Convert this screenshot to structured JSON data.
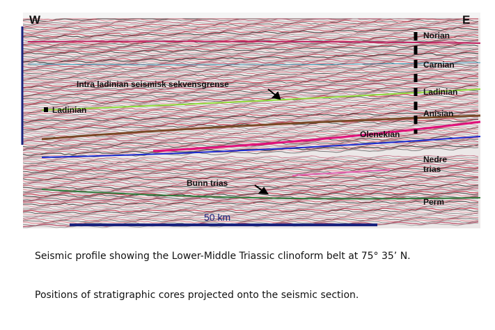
{
  "header": {
    "west": "W",
    "east": "E"
  },
  "labels": {
    "intra": "Intra ladinian seismisk sekvensgrense",
    "ladinian_left": "Ladinian",
    "olenekian": "Olenekian",
    "bunn": "Bunn trias",
    "scale": "50 km"
  },
  "column": [
    "Norian",
    "Carnian",
    "Ladinian",
    "Anisian",
    "Nedre trias",
    "Perm"
  ],
  "captions": [
    "Seismic profile showing the Lower-Middle Triassic clinoform belt at 75° 35’ N.",
    "Positions of stratigraphic cores projected onto the seismic section."
  ]
}
